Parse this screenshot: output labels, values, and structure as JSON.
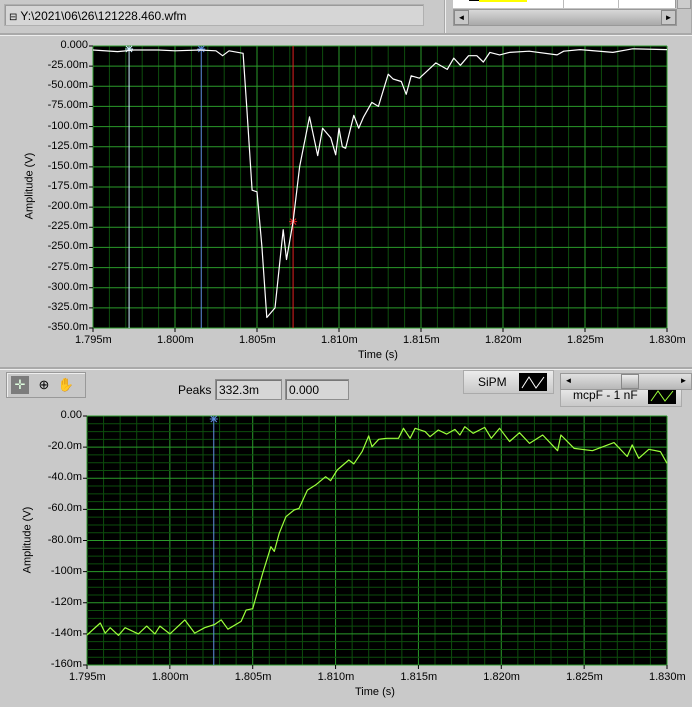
{
  "file_path": {
    "icon": "path-icon",
    "value": "Y:\\2021\\06\\26\\121228.460.wfm"
  },
  "table": {
    "highlight_color": "#ffff00",
    "scroll_left": "◄",
    "scroll_right": "►"
  },
  "toolbar": {
    "tools": [
      {
        "icon": "cursor-move-icon",
        "glyph": "✛"
      },
      {
        "icon": "zoom-icon",
        "glyph": "⊕"
      },
      {
        "icon": "pan-hand-icon",
        "glyph": "✋"
      }
    ],
    "peaks_label": "Peaks",
    "peaks_value_1": "332.3m",
    "peaks_value_2": "0.000"
  },
  "legend": {
    "scroll_left": "◄",
    "scroll_right": "►",
    "plots": [
      {
        "name": "SiPM",
        "color": "#ffffff"
      },
      {
        "name": "mcpF - 1 nF",
        "color": "#9cff3c"
      }
    ]
  },
  "chart_data": [
    {
      "type": "line",
      "xlabel": "Time (s)",
      "ylabel": "Amplitude (V)",
      "xlim": [
        1.795,
        1.83
      ],
      "ylim": [
        -350,
        0
      ],
      "x_ticks": [
        "1.795m",
        "1.800m",
        "1.805m",
        "1.810m",
        "1.815m",
        "1.820m",
        "1.825m",
        "1.830m"
      ],
      "y_ticks": [
        "0.000",
        "-25.00m",
        "-50.00m",
        "-75.00m",
        "-100.0m",
        "-125.0m",
        "-150.0m",
        "-175.0m",
        "-200.0m",
        "-225.0m",
        "-250.0m",
        "-275.0m",
        "-300.0m",
        "-325.0m",
        "-350.0m"
      ],
      "grid": true,
      "background": "#000000",
      "grid_color": "#1f8a1f",
      "series": [
        {
          "name": "SiPM",
          "color": "#ffffff",
          "x": [
            1.795,
            1.7965,
            1.7975,
            1.799,
            1.8,
            1.8015,
            1.8025,
            1.8029,
            1.8033,
            1.80415,
            1.80437,
            1.8047,
            1.805,
            1.8053,
            1.8056,
            1.8061,
            1.8066,
            1.8068,
            1.8072,
            1.8076,
            1.8082,
            1.8087,
            1.809,
            1.8095,
            1.8098,
            1.81,
            1.8102,
            1.8104,
            1.8109,
            1.8112,
            1.8115,
            1.812,
            1.8124,
            1.813,
            1.8133,
            1.8138,
            1.8141,
            1.8144,
            1.8149,
            1.8159,
            1.8166,
            1.817,
            1.8174,
            1.8179,
            1.8184,
            1.8188,
            1.8192,
            1.8198,
            1.8204,
            1.8216,
            1.8233,
            1.8237,
            1.8247,
            1.8267,
            1.8279,
            1.83
          ],
          "y": [
            -5,
            -7,
            -5,
            -5,
            -6,
            -5,
            -6,
            -12,
            -6,
            -9,
            -75,
            -179,
            -181,
            -249,
            -337,
            -325,
            -228,
            -265,
            -218,
            -150,
            -88,
            -136,
            -102,
            -114,
            -135,
            -102,
            -125,
            -127,
            -86,
            -102,
            -88,
            -70,
            -75,
            -35,
            -41,
            -44,
            -60,
            -37,
            -40,
            -21,
            -29,
            -15,
            -24,
            -12,
            -12,
            -20,
            -8,
            -11,
            -8,
            -6.5,
            -11,
            -6.5,
            -4.5,
            -8,
            -3.5,
            -4.5
          ]
        }
      ],
      "cursors": [
        {
          "x": 1.7972,
          "color": "#cfefff"
        },
        {
          "x": 1.8016,
          "color": "#5f8fe0"
        },
        {
          "x": 1.8072,
          "y": -218,
          "color": "#e02020"
        }
      ]
    },
    {
      "type": "line",
      "xlabel": "Time (s)",
      "ylabel": "Amplitude (V)",
      "xlim": [
        1.795,
        1.83
      ],
      "ylim": [
        -160,
        0
      ],
      "x_ticks": [
        "1.795m",
        "1.800m",
        "1.805m",
        "1.810m",
        "1.815m",
        "1.820m",
        "1.825m",
        "1.830m"
      ],
      "y_ticks": [
        "0.00",
        "-20.0m",
        "-40.0m",
        "-60.0m",
        "-80.0m",
        "-100m",
        "-120m",
        "-140m",
        "-160m"
      ],
      "grid": true,
      "background": "#000000",
      "grid_color": "#1f8a1f",
      "series": [
        {
          "name": "mcpF - 1 nF",
          "color": "#9cff3c",
          "x": [
            1.795,
            1.7958,
            1.7961,
            1.7964,
            1.7969,
            1.7973,
            1.7981,
            1.7986,
            1.7991,
            1.7994,
            1.8,
            1.8009,
            1.8015,
            1.8021,
            1.8027,
            1.8031,
            1.8035,
            1.8043,
            1.8046,
            1.805,
            1.8056,
            1.8061,
            1.8063,
            1.8066,
            1.807,
            1.8075,
            1.8078,
            1.8083,
            1.8088,
            1.8094,
            1.8097,
            1.8101,
            1.8108,
            1.8111,
            1.8116,
            1.812,
            1.8122,
            1.8126,
            1.8131,
            1.8138,
            1.8141,
            1.8145,
            1.8148,
            1.8154,
            1.8157,
            1.8162,
            1.8167,
            1.8172,
            1.8175,
            1.8178,
            1.8183,
            1.819,
            1.8194,
            1.8199,
            1.8205,
            1.8211,
            1.8217,
            1.8225,
            1.8234,
            1.8236,
            1.8244,
            1.8255,
            1.8268,
            1.8276,
            1.8279,
            1.8283,
            1.8289,
            1.8296,
            1.83
          ],
          "y": [
            -140.7,
            -133,
            -139.5,
            -136,
            -141,
            -136,
            -140,
            -135,
            -140,
            -135,
            -140,
            -131,
            -139.5,
            -136,
            -134,
            -131,
            -137,
            -132,
            -124.7,
            -123.8,
            -101,
            -84,
            -87,
            -75.4,
            -64.7,
            -60.4,
            -59.3,
            -47.6,
            -44.3,
            -39,
            -41.6,
            -34.7,
            -28.3,
            -30.8,
            -22.9,
            -12.8,
            -19.7,
            -15,
            -14.3,
            -14.3,
            -7.9,
            -14.3,
            -7.9,
            -10,
            -13.3,
            -9,
            -11.6,
            -8.6,
            -12.2,
            -6.9,
            -11.1,
            -7.3,
            -14.3,
            -7.9,
            -16.4,
            -10.7,
            -17.6,
            -12.2,
            -22.3,
            -12.2,
            -20.8,
            -22.3,
            -17.1,
            -26,
            -18.6,
            -27.2,
            -21.4,
            -22.9,
            -30.4
          ]
        }
      ],
      "cursors": [
        {
          "x": 1.80265,
          "color": "#5f8fe0"
        }
      ]
    }
  ]
}
